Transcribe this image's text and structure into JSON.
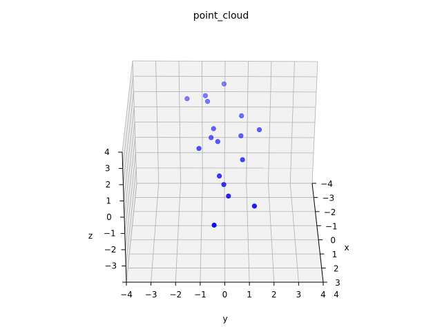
{
  "chart_data": {
    "type": "scatter",
    "projection": "3d",
    "title": "point_cloud",
    "xlabel": "x",
    "ylabel": "y",
    "zlabel": "z",
    "xlim": [
      -4,
      3
    ],
    "ylim": [
      -4,
      4
    ],
    "zlim": [
      -4,
      4
    ],
    "grid": true,
    "x_ticks": [
      "−4",
      "−3",
      "−2",
      "−1",
      "0",
      "1",
      "2",
      "3"
    ],
    "y_ticks": [
      "−4",
      "−3",
      "−2",
      "−1",
      "0",
      "1",
      "2",
      "3",
      "4"
    ],
    "z_ticks": [
      "−3",
      "−2",
      "−1",
      "0",
      "1",
      "2",
      "3",
      "4"
    ],
    "series": [
      {
        "color": "#0000ff",
        "points": [
          {
            "x": -3.0,
            "y": -1.6,
            "z": 2.4
          },
          {
            "x": -3.0,
            "y": -0.8,
            "z": 2.6
          },
          {
            "x": -2.8,
            "y": -0.7,
            "z": 2.4
          },
          {
            "x": -3.2,
            "y": 0.0,
            "z": 3.2
          },
          {
            "x": -2.3,
            "y": 0.8,
            "z": 1.9
          },
          {
            "x": -1.6,
            "y": 1.6,
            "z": 1.6
          },
          {
            "x": -1.5,
            "y": 0.8,
            "z": 1.3
          },
          {
            "x": -1.8,
            "y": -0.4,
            "z": 1.5
          },
          {
            "x": -1.6,
            "y": -0.5,
            "z": 1.1
          },
          {
            "x": -1.3,
            "y": -0.2,
            "z": 1.1
          },
          {
            "x": -0.9,
            "y": -1.0,
            "z": 1.0
          },
          {
            "x": -0.3,
            "y": 0.9,
            "z": 0.8
          },
          {
            "x": 0.2,
            "y": -0.1,
            "z": 0.2
          },
          {
            "x": 0.6,
            "y": 0.1,
            "z": 0.0
          },
          {
            "x": 1.1,
            "y": 0.3,
            "z": -0.3
          },
          {
            "x": 1.6,
            "y": 1.4,
            "z": -0.5
          },
          {
            "x": 2.4,
            "y": -0.3,
            "z": -1.0
          }
        ]
      }
    ]
  }
}
